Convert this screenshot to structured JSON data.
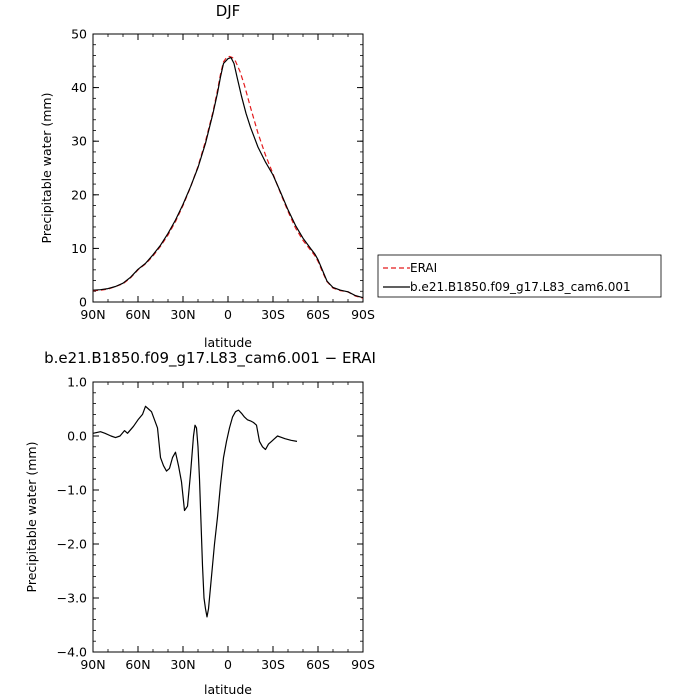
{
  "chart_data": [
    {
      "type": "line",
      "title": "DJF",
      "xlabel": "latitude",
      "ylabel": "Precipitable water (mm)",
      "xlim": [
        90,
        -90
      ],
      "ylim": [
        0,
        50
      ],
      "xticks": [
        {
          "value": 90,
          "label": "90N"
        },
        {
          "value": 60,
          "label": "60N"
        },
        {
          "value": 30,
          "label": "30N"
        },
        {
          "value": 0,
          "label": "0"
        },
        {
          "value": -30,
          "label": "30S"
        },
        {
          "value": -60,
          "label": "60S"
        },
        {
          "value": -90,
          "label": "90S"
        }
      ],
      "yticks": [
        {
          "value": 0,
          "label": "0"
        },
        {
          "value": 10,
          "label": "10"
        },
        {
          "value": 20,
          "label": "20"
        },
        {
          "value": 30,
          "label": "30"
        },
        {
          "value": 40,
          "label": "40"
        },
        {
          "value": 50,
          "label": "50"
        }
      ],
      "legend_position": "right",
      "series": [
        {
          "name": "ERAI",
          "color": "#e31a1c",
          "style": "dashed",
          "points": [
            [
              90,
              2.1
            ],
            [
              85,
              2.2
            ],
            [
              80,
              2.4
            ],
            [
              75,
              2.9
            ],
            [
              70,
              3.4
            ],
            [
              65,
              4.5
            ],
            [
              60,
              6.0
            ],
            [
              55,
              7.1
            ],
            [
              50,
              8.6
            ],
            [
              45,
              10.4
            ],
            [
              40,
              12.5
            ],
            [
              35,
              15.0
            ],
            [
              30,
              18.0
            ],
            [
              25,
              21.4
            ],
            [
              20,
              25.3
            ],
            [
              15,
              30.0
            ],
            [
              10,
              35.5
            ],
            [
              7,
              39.5
            ],
            [
              5,
              42.5
            ],
            [
              3,
              44.8
            ],
            [
              1,
              45.6
            ],
            [
              -1,
              45.8
            ],
            [
              -3,
              45.6
            ],
            [
              -5,
              44.9
            ],
            [
              -8,
              43.0
            ],
            [
              -11,
              40.4
            ],
            [
              -15,
              36.3
            ],
            [
              -20,
              31.5
            ],
            [
              -25,
              27.4
            ],
            [
              -30,
              23.9
            ],
            [
              -35,
              20.3
            ],
            [
              -40,
              16.9
            ],
            [
              -45,
              13.8
            ],
            [
              -50,
              11.5
            ],
            [
              -55,
              9.7
            ],
            [
              -58,
              8.6
            ],
            [
              -60,
              7.6
            ],
            [
              -63,
              5.6
            ],
            [
              -66,
              3.8
            ],
            [
              -70,
              2.6
            ],
            [
              -75,
              2.1
            ],
            [
              -80,
              1.9
            ],
            [
              -85,
              1.1
            ],
            [
              -90,
              0.7
            ]
          ]
        },
        {
          "name": "b.e21.B1850.f09_g17.L83_cam6.001",
          "color": "#000000",
          "style": "solid",
          "points": [
            [
              90,
              2.2
            ],
            [
              85,
              2.3
            ],
            [
              80,
              2.5
            ],
            [
              75,
              2.9
            ],
            [
              70,
              3.5
            ],
            [
              65,
              4.6
            ],
            [
              60,
              6.1
            ],
            [
              55,
              7.2
            ],
            [
              50,
              8.8
            ],
            [
              45,
              10.6
            ],
            [
              40,
              12.8
            ],
            [
              35,
              15.3
            ],
            [
              30,
              18.2
            ],
            [
              25,
              21.5
            ],
            [
              20,
              25.1
            ],
            [
              15,
              29.6
            ],
            [
              10,
              35.2
            ],
            [
              7,
              39.0
            ],
            [
              5,
              42.0
            ],
            [
              3,
              44.5
            ],
            [
              0,
              45.4
            ],
            [
              -2,
              45.6
            ],
            [
              -4,
              44.5
            ],
            [
              -6,
              42.0
            ],
            [
              -9,
              38.4
            ],
            [
              -12,
              35.2
            ],
            [
              -15,
              32.6
            ],
            [
              -20,
              28.9
            ],
            [
              -25,
              26.1
            ],
            [
              -30,
              23.7
            ],
            [
              -35,
              20.5
            ],
            [
              -40,
              17.2
            ],
            [
              -45,
              14.3
            ],
            [
              -50,
              11.9
            ],
            [
              -55,
              10.0
            ],
            [
              -58,
              8.9
            ],
            [
              -60,
              7.9
            ],
            [
              -63,
              5.9
            ],
            [
              -66,
              3.9
            ],
            [
              -70,
              2.7
            ],
            [
              -75,
              2.2
            ],
            [
              -80,
              1.9
            ],
            [
              -85,
              1.2
            ],
            [
              -90,
              0.8
            ]
          ]
        }
      ]
    },
    {
      "type": "line",
      "title": "b.e21.B1850.f09_g17.L83_cam6.001 − ERAI",
      "xlabel": "latitude",
      "ylabel": "Precipitable water (mm)",
      "xlim": [
        90,
        -90
      ],
      "ylim": [
        -4.0,
        1.0
      ],
      "xticks": [
        {
          "value": 90,
          "label": "90N"
        },
        {
          "value": 60,
          "label": "60N"
        },
        {
          "value": 30,
          "label": "30N"
        },
        {
          "value": 0,
          "label": "0"
        },
        {
          "value": -30,
          "label": "30S"
        },
        {
          "value": -60,
          "label": "60S"
        },
        {
          "value": -90,
          "label": "90S"
        }
      ],
      "yticks": [
        {
          "value": 1.0,
          "label": "1.0"
        },
        {
          "value": 0.0,
          "label": "0.0"
        },
        {
          "value": -1.0,
          "label": "−1.0"
        },
        {
          "value": -2.0,
          "label": "−2.0"
        },
        {
          "value": -3.0,
          "label": "−3.0"
        },
        {
          "value": -4.0,
          "label": "−4.0"
        }
      ],
      "series": [
        {
          "name": "",
          "color": "#000000",
          "style": "solid",
          "points": [
            [
              90,
              0.05
            ],
            [
              85,
              0.08
            ],
            [
              82,
              0.05
            ],
            [
              78,
              0.0
            ],
            [
              75,
              -0.03
            ],
            [
              72,
              0.0
            ],
            [
              69,
              0.1
            ],
            [
              67,
              0.05
            ],
            [
              63,
              0.18
            ],
            [
              60,
              0.3
            ],
            [
              57,
              0.4
            ],
            [
              55,
              0.55
            ],
            [
              53,
              0.5
            ],
            [
              51,
              0.45
            ],
            [
              49,
              0.3
            ],
            [
              47,
              0.15
            ],
            [
              45,
              -0.4
            ],
            [
              43,
              -0.55
            ],
            [
              41,
              -0.65
            ],
            [
              39,
              -0.6
            ],
            [
              37,
              -0.4
            ],
            [
              35,
              -0.3
            ],
            [
              33,
              -0.55
            ],
            [
              31,
              -0.85
            ],
            [
              29,
              -1.38
            ],
            [
              27,
              -1.3
            ],
            [
              25,
              -0.7
            ],
            [
              23,
              0.0
            ],
            [
              22,
              0.2
            ],
            [
              21,
              0.15
            ],
            [
              20,
              -0.2
            ],
            [
              19,
              -0.8
            ],
            [
              18,
              -1.6
            ],
            [
              17,
              -2.4
            ],
            [
              16,
              -3.0
            ],
            [
              15,
              -3.2
            ],
            [
              14,
              -3.35
            ],
            [
              13,
              -3.2
            ],
            [
              11,
              -2.6
            ],
            [
              9,
              -2.0
            ],
            [
              7,
              -1.5
            ],
            [
              5,
              -0.9
            ],
            [
              3,
              -0.4
            ],
            [
              1,
              -0.1
            ],
            [
              -1,
              0.15
            ],
            [
              -3,
              0.35
            ],
            [
              -5,
              0.45
            ],
            [
              -7,
              0.48
            ],
            [
              -9,
              0.42
            ],
            [
              -11,
              0.35
            ],
            [
              -13,
              0.3
            ],
            [
              -15,
              0.28
            ],
            [
              -17,
              0.25
            ],
            [
              -19,
              0.2
            ],
            [
              -21,
              -0.1
            ],
            [
              -23,
              -0.2
            ],
            [
              -25,
              -0.25
            ],
            [
              -27,
              -0.15
            ],
            [
              -29,
              -0.1
            ],
            [
              -31,
              -0.05
            ],
            [
              -33,
              0.0
            ],
            [
              -35,
              -0.02
            ],
            [
              -38,
              -0.05
            ],
            [
              -42,
              -0.08
            ],
            [
              -46,
              -0.1
            ]
          ]
        }
      ]
    }
  ]
}
